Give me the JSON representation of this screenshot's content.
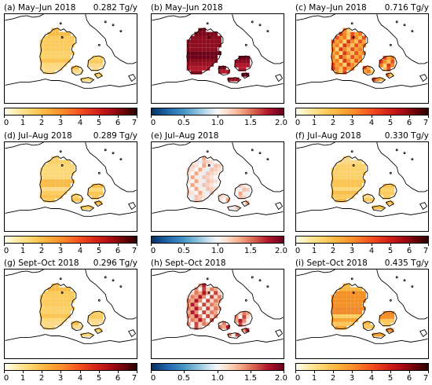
{
  "panels": [
    {
      "label": "(a) May–Jun 2018",
      "total": "0.282 Tg/y",
      "scale": "seq",
      "ticks": [
        "0",
        "1",
        "2",
        "3",
        "4",
        "5",
        "6",
        "7"
      ],
      "intensity": "low"
    },
    {
      "label": "(b) May–Jun 2018",
      "total": "",
      "scale": "div",
      "ticks": [
        "0",
        "0.5",
        "1.0",
        "1.5",
        "2.0"
      ],
      "intensity": "ratio-high"
    },
    {
      "label": "(c) May–Jun 2018",
      "total": "0.716 Tg/y",
      "scale": "seq",
      "ticks": [
        "0",
        "1",
        "2",
        "3",
        "4",
        "5",
        "6",
        "7"
      ],
      "intensity": "high"
    },
    {
      "label": "(d) Jul–Aug 2018",
      "total": "0.289 Tg/y",
      "scale": "seq",
      "ticks": [
        "0",
        "1",
        "2",
        "3",
        "4",
        "5",
        "6",
        "7"
      ],
      "intensity": "low"
    },
    {
      "label": "(e) Jul–Aug 2018",
      "total": "",
      "scale": "div",
      "ticks": [
        "0",
        "0.5",
        "1.0",
        "1.5",
        "2.0"
      ],
      "intensity": "ratio-near"
    },
    {
      "label": "(f) Jul–Aug 2018",
      "total": "0.330 Tg/y",
      "scale": "seq",
      "ticks": [
        "0",
        "1",
        "2",
        "3",
        "4",
        "5",
        "6",
        "7"
      ],
      "intensity": "low"
    },
    {
      "label": "(g) Sept–Oct 2018",
      "total": "0.296 Tg/y",
      "scale": "seq",
      "ticks": [
        "0",
        "1",
        "2",
        "3",
        "4",
        "5",
        "6",
        "7"
      ],
      "intensity": "low"
    },
    {
      "label": "(h) Sept–Oct 2018",
      "total": "",
      "scale": "div",
      "ticks": [
        "0",
        "0.5",
        "1.0",
        "1.5",
        "2.0"
      ],
      "intensity": "ratio-mid"
    },
    {
      "label": "(i) Sept–Oct 2018",
      "total": "0.435 Tg/y",
      "scale": "seq",
      "ticks": [
        "0",
        "1",
        "2",
        "3",
        "4",
        "5",
        "6",
        "7"
      ],
      "intensity": "mid"
    }
  ],
  "colorbars": {
    "seq": {
      "min": 0,
      "max": 7
    },
    "div": {
      "min": 0,
      "max": 2.0
    }
  }
}
